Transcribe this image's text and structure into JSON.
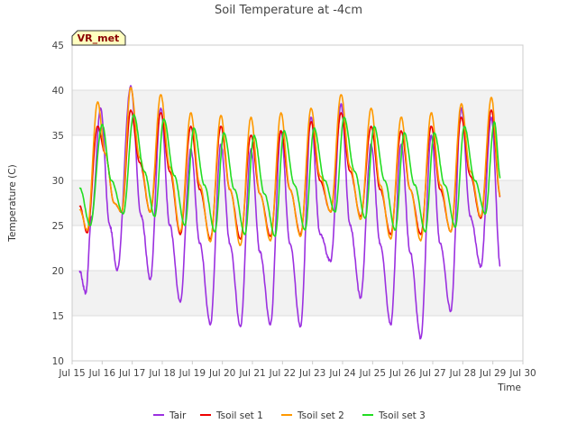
{
  "chart_data": {
    "type": "line",
    "title": "Soil Temperature at -4cm",
    "xlabel": "Time",
    "ylabel": "Temperature (C)",
    "xlim": [
      15,
      30
    ],
    "ylim": [
      10,
      45
    ],
    "x_ticks": [
      15,
      16,
      17,
      18,
      19,
      20,
      21,
      22,
      23,
      24,
      25,
      26,
      27,
      28,
      29,
      30
    ],
    "x_tick_labels": [
      "Jul 15",
      "Jul 16",
      "Jul 17",
      "Jul 18",
      "Jul 19",
      "Jul 20",
      "Jul 21",
      "Jul 22",
      "Jul 23",
      "Jul 24",
      "Jul 25",
      "Jul 26",
      "Jul 27",
      "Jul 28",
      "Jul 29",
      "Jul 30"
    ],
    "y_ticks": [
      10,
      15,
      20,
      25,
      30,
      35,
      40,
      45
    ],
    "grid": true,
    "legend_position": "bottom",
    "badge": "VR_met",
    "series": [
      {
        "name": "Tair",
        "color": "#9b30e0",
        "x": [
          15.25,
          15.45,
          15.65,
          15.95,
          16.25,
          16.5,
          16.95,
          17.3,
          17.6,
          17.95,
          18.25,
          18.6,
          18.95,
          19.25,
          19.6,
          19.95,
          20.25,
          20.6,
          20.95,
          21.25,
          21.6,
          21.95,
          22.25,
          22.6,
          22.95,
          23.25,
          23.6,
          23.95,
          24.25,
          24.6,
          24.95,
          25.25,
          25.6,
          25.95,
          26.25,
          26.6,
          26.95,
          27.25,
          27.6,
          27.95,
          28.25,
          28.6,
          28.95,
          29.25
        ],
        "y": [
          20,
          17.5,
          26,
          38,
          25,
          20,
          40.5,
          26,
          19,
          38,
          25,
          16.5,
          33.5,
          23,
          14,
          34,
          23,
          13.8,
          33.5,
          22,
          14,
          35.5,
          23,
          13.8,
          37,
          24,
          21,
          38.5,
          25,
          17,
          34,
          23,
          14,
          34,
          22,
          12.5,
          35,
          23,
          15.5,
          38,
          26,
          20.5,
          37,
          20.5
        ]
      },
      {
        "name": "Tsoil set 1",
        "color": "#ee0000",
        "x": [
          15.25,
          15.5,
          15.85,
          16.1,
          16.4,
          16.65,
          16.95,
          17.25,
          17.6,
          17.95,
          18.25,
          18.6,
          18.95,
          19.25,
          19.6,
          19.95,
          20.25,
          20.6,
          20.95,
          21.25,
          21.6,
          21.95,
          22.25,
          22.6,
          22.95,
          23.25,
          23.6,
          23.95,
          24.25,
          24.6,
          24.95,
          25.25,
          25.6,
          25.95,
          26.25,
          26.6,
          26.95,
          27.25,
          27.6,
          27.95,
          28.25,
          28.6,
          28.95,
          29.25
        ],
        "y": [
          27.2,
          24.2,
          36,
          33,
          27.5,
          26.5,
          37.8,
          32,
          26.5,
          37.5,
          31,
          24,
          36,
          29,
          23.5,
          36,
          29,
          23.5,
          35,
          28.5,
          23.8,
          35.5,
          29,
          24,
          36.5,
          30,
          26.5,
          37.5,
          31,
          26,
          36,
          29,
          24,
          35.5,
          29,
          24,
          36,
          29,
          24.3,
          37,
          30.5,
          25.8,
          37.8,
          28.2
        ]
      },
      {
        "name": "Tsoil set 2",
        "color": "#ff9900",
        "x": [
          15.25,
          15.5,
          15.85,
          16.1,
          16.4,
          16.65,
          16.95,
          17.25,
          17.6,
          17.95,
          18.25,
          18.6,
          18.95,
          19.25,
          19.6,
          19.95,
          20.25,
          20.6,
          20.95,
          21.25,
          21.6,
          21.95,
          22.25,
          22.6,
          22.95,
          23.25,
          23.6,
          23.95,
          24.25,
          24.6,
          24.95,
          25.25,
          25.6,
          25.95,
          26.25,
          26.6,
          26.95,
          27.25,
          27.6,
          27.95,
          28.25,
          28.6,
          28.95,
          29.25
        ],
        "y": [
          26.8,
          24.5,
          38.7,
          33,
          27.5,
          26.5,
          40.3,
          32.5,
          26.5,
          39.5,
          31.5,
          24.3,
          37.5,
          29.5,
          23.2,
          37.2,
          29,
          22.8,
          37,
          28.5,
          23.3,
          37.5,
          29,
          23.8,
          38,
          30.5,
          26.5,
          39.5,
          31.5,
          25.7,
          38,
          29.5,
          23.5,
          37,
          29,
          23.3,
          37.5,
          29.5,
          24.3,
          38.5,
          31,
          26,
          39.2,
          28.3
        ]
      },
      {
        "name": "Tsoil set 3",
        "color": "#22dd22",
        "x": [
          15.25,
          15.6,
          16.0,
          16.3,
          16.7,
          17.05,
          17.4,
          17.75,
          18.05,
          18.4,
          18.75,
          19.05,
          19.4,
          19.75,
          20.05,
          20.4,
          20.75,
          21.05,
          21.4,
          21.75,
          22.05,
          22.4,
          22.75,
          23.05,
          23.4,
          23.75,
          24.05,
          24.4,
          24.75,
          25.05,
          25.4,
          25.75,
          26.05,
          26.4,
          26.75,
          27.05,
          27.4,
          27.75,
          28.05,
          28.4,
          28.75,
          29.05,
          29.25
        ],
        "y": [
          29.2,
          25,
          36.2,
          30,
          26.3,
          37.3,
          31,
          26,
          36.8,
          30.5,
          25,
          35.8,
          29.5,
          24.3,
          35.3,
          29,
          24,
          35,
          28.5,
          23.8,
          35.5,
          29.5,
          24.5,
          35.8,
          30,
          26.5,
          37,
          31,
          25.8,
          36,
          30,
          24.5,
          35.3,
          29.5,
          24.3,
          35.3,
          29.5,
          24.8,
          36,
          30,
          26.3,
          36.5,
          30.3
        ]
      }
    ]
  }
}
